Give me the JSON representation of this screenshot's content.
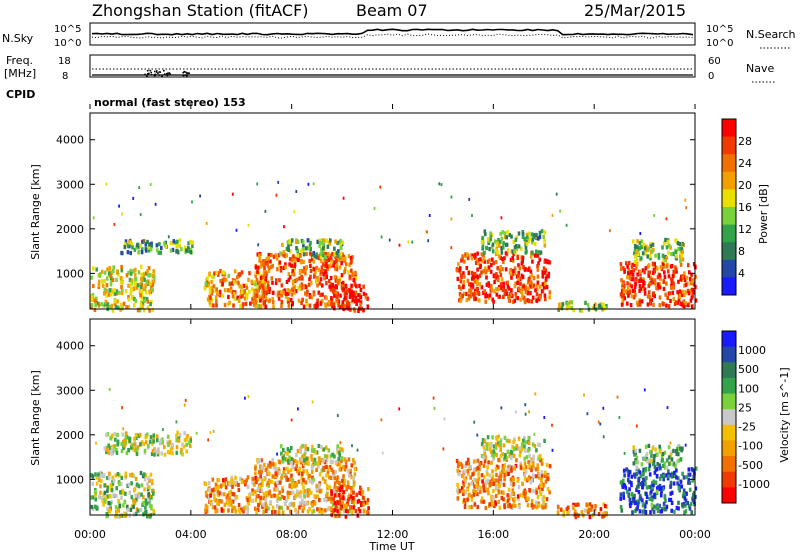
{
  "header": {
    "station": "Zhongshan Station (fitACF)",
    "beam": "Beam 07",
    "date": "25/Mar/2015"
  },
  "aux": {
    "nsky_label": "N.Sky",
    "nsearch_label": "N.Search",
    "nsky_ticks": [
      "10^5",
      "10^0"
    ],
    "nsearch_ticks": [
      "10^5",
      "10^0"
    ],
    "freq_label": "Freq.",
    "freq_unit": "[MHz]",
    "freq_ticks": [
      "18",
      "8"
    ],
    "nave_label": "Nave",
    "nave_ticks": [
      "60",
      "0"
    ],
    "cpid_label": "CPID",
    "cpid_text": "normal (fast stereo) 153"
  },
  "colors": {
    "power_scale": [
      "#1a1aff",
      "#2448a8",
      "#2f7a54",
      "#33a34a",
      "#7ad23a",
      "#e8e000",
      "#f2a000",
      "#f07000",
      "#f03a00",
      "#ff0000"
    ],
    "velocity_scale": [
      "#1a1aff",
      "#2448a8",
      "#2f7a54",
      "#33a34a",
      "#7ad23a",
      "#c8c8c8",
      "#f2c000",
      "#f2a000",
      "#f07000",
      "#f03a00",
      "#ff0000"
    ]
  },
  "chart_data": [
    {
      "type": "heatmap",
      "panel": "power",
      "xlabel": "Time UT",
      "ylabel": "Slant Range [km]",
      "xlim": [
        0,
        24
      ],
      "ylim": [
        200,
        4600
      ],
      "yticks": [
        1000,
        2000,
        3000,
        4000
      ],
      "xticks": [
        "00:00",
        "04:00",
        "08:00",
        "12:00",
        "16:00",
        "20:00",
        "00:00"
      ],
      "colorbar": {
        "label": "Power [dB]",
        "range": [
          0,
          30
        ],
        "ticks": [
          "4",
          "8",
          "12",
          "16",
          "20",
          "24",
          "28"
        ]
      },
      "regions": [
        {
          "t": [
            0.0,
            2.5
          ],
          "r": [
            200,
            1200
          ],
          "level": 0.55
        },
        {
          "t": [
            1.2,
            4.2
          ],
          "r": [
            1500,
            1800
          ],
          "level": 0.35
        },
        {
          "t": [
            4.5,
            7.0
          ],
          "r": [
            300,
            1100
          ],
          "level": 0.7
        },
        {
          "t": [
            6.5,
            10.5
          ],
          "r": [
            300,
            1500
          ],
          "level": 0.8
        },
        {
          "t": [
            7.5,
            10.0
          ],
          "r": [
            1400,
            1800
          ],
          "level": 0.4
        },
        {
          "t": [
            9.5,
            11.0
          ],
          "r": [
            200,
            800
          ],
          "level": 0.95
        },
        {
          "t": [
            14.5,
            18.2
          ],
          "r": [
            400,
            1500
          ],
          "level": 0.85
        },
        {
          "t": [
            15.5,
            18.0
          ],
          "r": [
            1500,
            2000
          ],
          "level": 0.4
        },
        {
          "t": [
            18.5,
            20.5
          ],
          "r": [
            200,
            400
          ],
          "level": 0.5
        },
        {
          "t": [
            21.0,
            24.0
          ],
          "r": [
            300,
            1300
          ],
          "level": 0.85
        },
        {
          "t": [
            21.5,
            23.5
          ],
          "r": [
            1300,
            1800
          ],
          "level": 0.45
        }
      ]
    },
    {
      "type": "heatmap",
      "panel": "velocity",
      "xlabel": "Time UT",
      "ylabel": "Slant Range [km]",
      "xlim": [
        0,
        24
      ],
      "ylim": [
        200,
        4600
      ],
      "yticks": [
        1000,
        2000,
        3000,
        4000
      ],
      "xticks": [
        "00:00",
        "04:00",
        "08:00",
        "12:00",
        "16:00",
        "20:00",
        "00:00"
      ],
      "colorbar": {
        "label": "Velocity [m s^-1]",
        "range": [
          -1200,
          1200
        ],
        "ticks": [
          "1000",
          "500",
          "100",
          "25",
          "-25",
          "-100",
          "-500",
          "-1000"
        ]
      },
      "regions": [
        {
          "t": [
            0.0,
            2.5
          ],
          "r": [
            200,
            1200
          ],
          "level": 0.45
        },
        {
          "t": [
            0.5,
            4.0
          ],
          "r": [
            1600,
            2100
          ],
          "level": 0.5
        },
        {
          "t": [
            4.5,
            7.0
          ],
          "r": [
            300,
            1100
          ],
          "level": 0.7
        },
        {
          "t": [
            6.5,
            10.5
          ],
          "r": [
            300,
            1500
          ],
          "level": 0.65
        },
        {
          "t": [
            7.5,
            10.0
          ],
          "r": [
            1400,
            1800
          ],
          "level": 0.5
        },
        {
          "t": [
            9.5,
            11.0
          ],
          "r": [
            200,
            900
          ],
          "level": 0.85
        },
        {
          "t": [
            14.5,
            18.2
          ],
          "r": [
            400,
            1500
          ],
          "level": 0.7
        },
        {
          "t": [
            15.5,
            18.0
          ],
          "r": [
            1500,
            2000
          ],
          "level": 0.5
        },
        {
          "t": [
            18.5,
            20.5
          ],
          "r": [
            200,
            500
          ],
          "level": 0.7
        },
        {
          "t": [
            21.0,
            24.0
          ],
          "r": [
            300,
            1300
          ],
          "level": 0.15
        },
        {
          "t": [
            21.5,
            23.5
          ],
          "r": [
            1300,
            1800
          ],
          "level": 0.4
        }
      ]
    }
  ]
}
